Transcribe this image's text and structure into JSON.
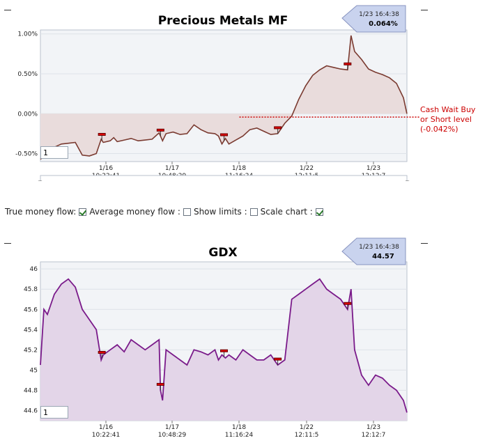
{
  "charts": [
    {
      "title": "Precious Metals MF",
      "type": "line-area",
      "y_ticks": [
        "1.00%",
        "0.50%",
        "0.00%",
        "-0.50%"
      ],
      "x_ticks": [
        {
          "date": "1/16",
          "time": "10:22:41"
        },
        {
          "date": "1/17",
          "time": "10:48:29"
        },
        {
          "date": "1/18",
          "time": "11:16:24"
        },
        {
          "date": "1/22",
          "time": "12:11:5"
        },
        {
          "date": "1/23",
          "time": "12:12:7"
        }
      ],
      "tooltip": {
        "time": "1/23 16:4:38",
        "value": "0.064%"
      },
      "annotation": {
        "lines": [
          "Cash Wait Buy",
          "or Short level",
          "(-0.042%)"
        ],
        "level": -0.042
      },
      "input_value": "1",
      "line_color": "#7a3a30",
      "fill_color": "#e9dcdc"
    },
    {
      "title": "GDX",
      "type": "line-area",
      "y_ticks": [
        "46",
        "45.8",
        "45.6",
        "45.4",
        "45.2",
        "45",
        "44.8",
        "44.6"
      ],
      "x_ticks": [
        {
          "date": "1/16",
          "time": "10:22:41"
        },
        {
          "date": "1/17",
          "time": "10:48:29"
        },
        {
          "date": "1/18",
          "time": "11:16:24"
        },
        {
          "date": "1/22",
          "time": "12:11:5"
        },
        {
          "date": "1/23",
          "time": "12:12:7"
        }
      ],
      "tooltip": {
        "time": "1/23 16:4:38",
        "value": "44.57"
      },
      "input_value": "1",
      "line_color": "#7a1a8a",
      "fill_color": "#e3d5e8"
    }
  ],
  "chart_data": [
    {
      "type": "line",
      "title": "Precious Metals MF",
      "ylim": [
        -0.6,
        1.05
      ],
      "x": [
        0,
        10,
        20,
        30,
        40,
        50,
        60,
        70,
        80,
        87,
        90,
        100,
        105,
        110,
        120,
        130,
        140,
        150,
        160,
        170,
        175,
        180,
        190,
        200,
        210,
        220,
        230,
        240,
        250,
        255,
        260,
        265,
        270,
        280,
        290,
        300,
        310,
        320,
        330,
        340,
        350,
        360,
        370,
        380,
        390,
        400,
        410,
        420,
        430,
        440,
        445,
        450,
        460,
        470,
        480,
        490,
        500,
        510,
        520,
        525
      ],
      "y": [
        -0.57,
        -0.5,
        -0.42,
        -0.38,
        -0.37,
        -0.36,
        -0.52,
        -0.53,
        -0.5,
        -0.32,
        -0.36,
        -0.34,
        -0.3,
        -0.35,
        -0.33,
        -0.31,
        -0.34,
        -0.33,
        -0.32,
        -0.24,
        -0.34,
        -0.25,
        -0.23,
        -0.26,
        -0.25,
        -0.14,
        -0.2,
        -0.24,
        -0.25,
        -0.28,
        -0.38,
        -0.31,
        -0.38,
        -0.33,
        -0.28,
        -0.2,
        -0.18,
        -0.22,
        -0.26,
        -0.25,
        -0.12,
        -0.03,
        0.18,
        0.35,
        0.48,
        0.55,
        0.6,
        0.58,
        0.56,
        0.55,
        0.98,
        0.78,
        0.68,
        0.56,
        0.52,
        0.49,
        0.45,
        0.38,
        0.2,
        0.0
      ],
      "markers": [
        88,
        172,
        263,
        340,
        440
      ],
      "reference_line": -0.042,
      "x_ticks": [
        "1/16 10:22:41",
        "1/17 10:48:29",
        "1/18 11:16:24",
        "1/22 12:11:5",
        "1/23 12:12:7"
      ]
    },
    {
      "type": "line",
      "title": "GDX",
      "ylim": [
        44.5,
        46.07
      ],
      "x": [
        0,
        5,
        10,
        20,
        30,
        40,
        50,
        60,
        65,
        70,
        80,
        87,
        90,
        100,
        110,
        120,
        130,
        140,
        150,
        160,
        170,
        172,
        175,
        180,
        190,
        200,
        210,
        220,
        230,
        240,
        250,
        255,
        260,
        265,
        270,
        280,
        290,
        300,
        310,
        320,
        330,
        340,
        350,
        360,
        370,
        380,
        390,
        400,
        410,
        420,
        430,
        440,
        445,
        450,
        460,
        470,
        480,
        490,
        500,
        510,
        520,
        525
      ],
      "y": [
        45.05,
        45.6,
        45.55,
        45.75,
        45.85,
        45.9,
        45.82,
        45.6,
        45.55,
        45.5,
        45.4,
        45.1,
        45.15,
        45.2,
        45.25,
        45.18,
        45.3,
        45.25,
        45.2,
        45.25,
        45.3,
        44.8,
        44.7,
        45.2,
        45.15,
        45.1,
        45.05,
        45.2,
        45.18,
        45.15,
        45.2,
        45.1,
        45.15,
        45.12,
        45.15,
        45.1,
        45.2,
        45.15,
        45.1,
        45.1,
        45.15,
        45.05,
        45.1,
        45.7,
        45.75,
        45.8,
        45.85,
        45.9,
        45.8,
        45.75,
        45.7,
        45.6,
        45.8,
        45.2,
        44.95,
        44.85,
        44.95,
        44.92,
        44.85,
        44.8,
        44.7,
        44.58
      ],
      "markers": [
        88,
        172,
        263,
        340,
        440
      ],
      "x_ticks": [
        "1/16 10:22:41",
        "1/17 10:48:29",
        "1/18 11:16:24",
        "1/22 12:11:5",
        "1/23 12:12:7"
      ]
    }
  ],
  "navigator_label": "time range scrollbar",
  "controls": [
    {
      "label": "True money flow:",
      "checked": true
    },
    {
      "label": "Average money flow :",
      "checked": false
    },
    {
      "label": "Show limits :",
      "checked": false
    },
    {
      "label": "Scale chart :",
      "checked": true
    }
  ]
}
